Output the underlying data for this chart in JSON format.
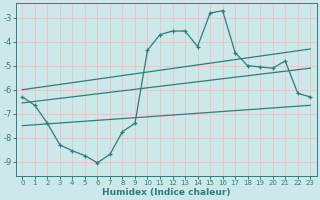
{
  "xlabel": "Humidex (Indice chaleur)",
  "bg_color": "#cce8e8",
  "line_color": "#2e7d7d",
  "grid_color": "#e8c8c8",
  "xlim": [
    -0.5,
    23.5
  ],
  "ylim": [
    -9.6,
    -2.4
  ],
  "yticks": [
    -9,
    -8,
    -7,
    -6,
    -5,
    -4,
    -3
  ],
  "xticks": [
    0,
    1,
    2,
    3,
    4,
    5,
    6,
    7,
    8,
    9,
    10,
    11,
    12,
    13,
    14,
    15,
    16,
    17,
    18,
    19,
    20,
    21,
    22,
    23
  ],
  "main_x": [
    0,
    1,
    2,
    3,
    4,
    5,
    6,
    7,
    8,
    9,
    10,
    11,
    12,
    13,
    14,
    15,
    16,
    17,
    18,
    19,
    20,
    21,
    22,
    23
  ],
  "main_y": [
    -6.3,
    -6.65,
    -7.4,
    -8.3,
    -8.55,
    -8.75,
    -9.05,
    -8.7,
    -7.75,
    -7.4,
    -4.35,
    -3.7,
    -3.55,
    -3.55,
    -4.2,
    -2.8,
    -2.7,
    -4.45,
    -5.0,
    -5.05,
    -5.1,
    -4.8,
    -6.15,
    -6.3
  ],
  "upper_line_x": [
    0,
    23
  ],
  "upper_line_y": [
    -6.0,
    -4.3
  ],
  "mid_line_x": [
    0,
    23
  ],
  "mid_line_y": [
    -6.55,
    -5.1
  ],
  "lower_line_x": [
    0,
    23
  ],
  "lower_line_y": [
    -7.5,
    -6.65
  ]
}
